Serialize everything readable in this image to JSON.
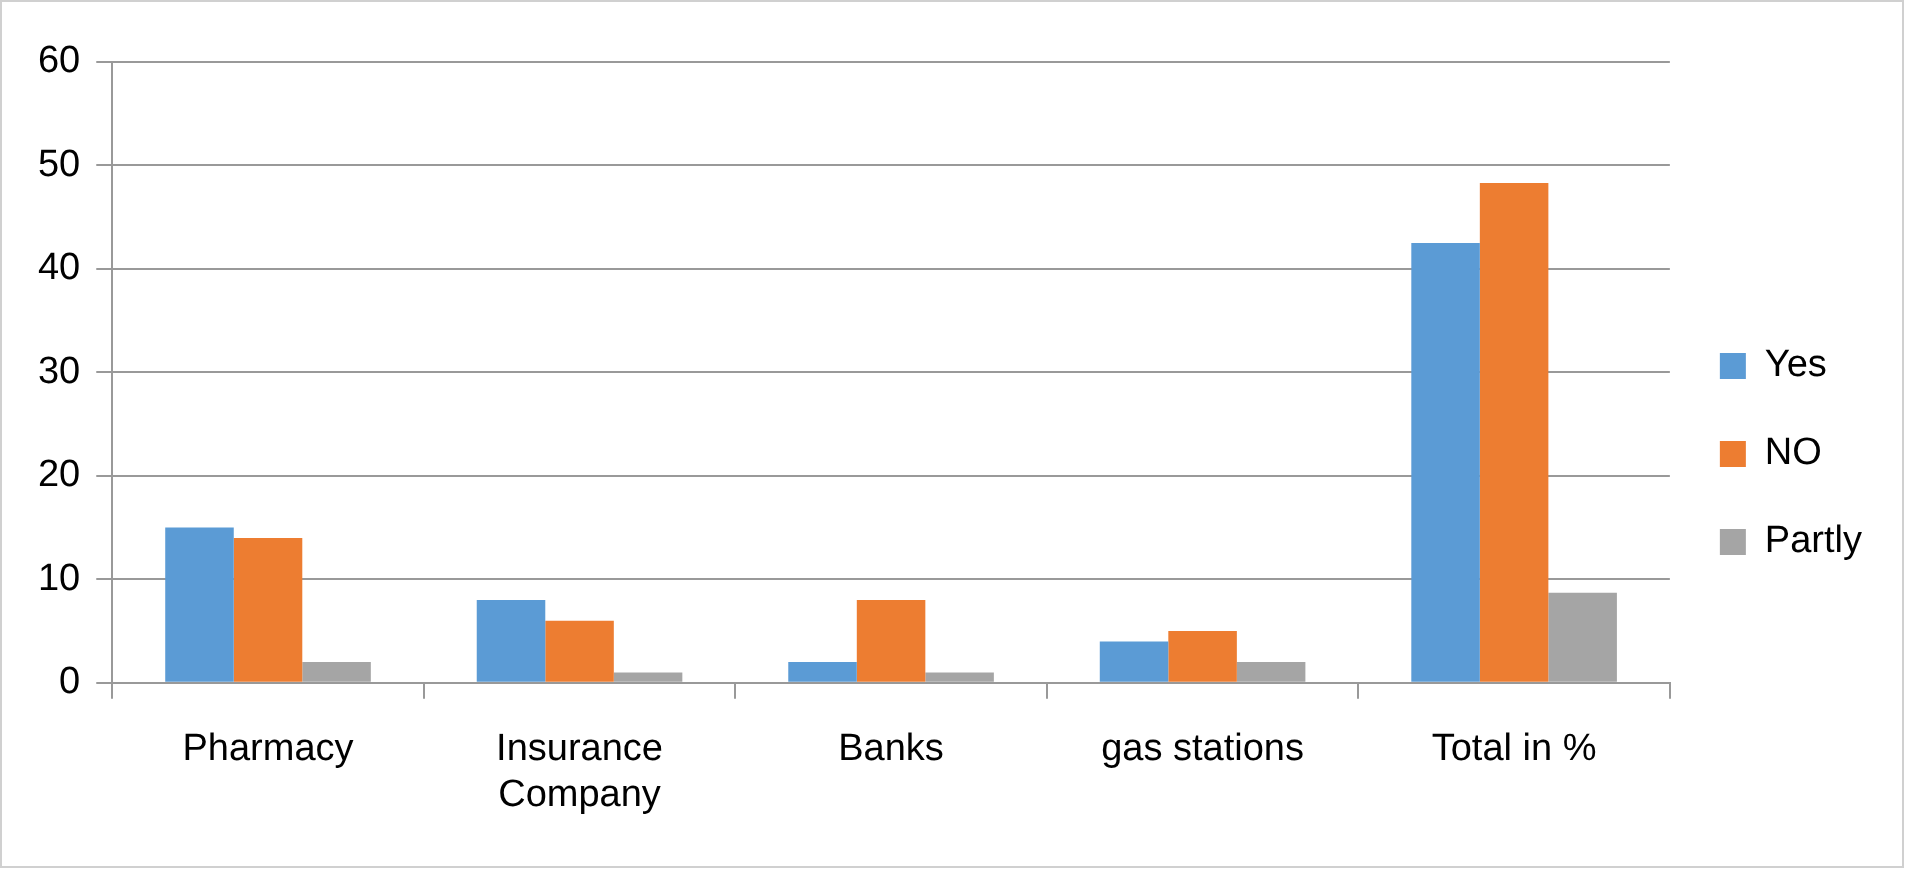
{
  "chart_data": {
    "type": "bar",
    "categories": [
      "Pharmacy",
      "Insurance Company",
      "Banks",
      "gas stations",
      "Total in %"
    ],
    "series": [
      {
        "name": "Yes",
        "color": "#5b9bd5",
        "values": [
          15,
          8,
          2,
          4,
          42.5
        ]
      },
      {
        "name": "NO",
        "color": "#ed7d31",
        "values": [
          14,
          6,
          8,
          5,
          48.3
        ]
      },
      {
        "name": "Partly",
        "color": "#a5a5a5",
        "values": [
          2,
          1,
          1,
          2,
          8.7
        ]
      }
    ],
    "ylim": [
      0,
      60
    ],
    "yticks": [
      0,
      10,
      20,
      30,
      40,
      50,
      60
    ],
    "grid": "y",
    "legend": "right"
  }
}
